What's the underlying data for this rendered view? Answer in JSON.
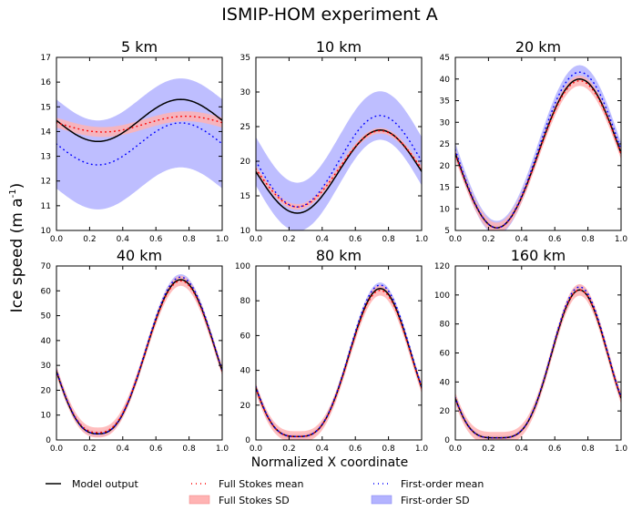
{
  "chart_data": {
    "type": "line",
    "title": "ISMIP-HOM experiment A",
    "xlabel": "Normalized X coordinate",
    "ylabel": "Ice speed (m a",
    "ylabel_sup": "-1",
    "ylabel_close": ")",
    "x_ticks": [
      "0.0",
      "0.2",
      "0.4",
      "0.6",
      "0.8",
      "1.0"
    ],
    "legend": {
      "model": "Model output",
      "fs_mean": "Full Stokes mean",
      "fs_sd": "Full Stokes SD",
      "fo_mean": "First-order mean",
      "fo_sd": "First-order SD"
    },
    "colors": {
      "model": "#000000",
      "fs_mean": "#ff0000",
      "fs_sd": "#ffb3b3",
      "fo_mean": "#0000ff",
      "fo_sd": "#b3b3ff"
    },
    "panels": [
      {
        "title": "5 km",
        "ylim": [
          10,
          17
        ],
        "yticks": [
          "10",
          "11",
          "12",
          "13",
          "14",
          "15",
          "16",
          "17"
        ],
        "model": {
          "mean": 14.45,
          "amp": 0.85,
          "phase": 0
        },
        "fs_mean": {
          "mean": 14.3,
          "amp": 0.32,
          "phase": -0.03
        },
        "fs_sd": 0.2,
        "fo_mean": {
          "mean": 13.5,
          "amp": 0.85,
          "phase": 0
        },
        "fo_sd": 1.8
      },
      {
        "title": "10 km",
        "ylim": [
          10,
          35
        ],
        "yticks": [
          "10",
          "15",
          "20",
          "25",
          "30",
          "35"
        ],
        "model": {
          "mean": 18.5,
          "amp": 6.0,
          "phase": 0
        },
        "fs_mean": {
          "mean": 18.9,
          "amp": 5.5,
          "phase": 0
        },
        "fs_sd": 0.4,
        "fo_mean": {
          "mean": 20.0,
          "amp": 6.6,
          "phase": 0
        },
        "fo_sd": 3.5
      },
      {
        "title": "20 km",
        "ylim": [
          5,
          45
        ],
        "yticks": [
          "5",
          "10",
          "15",
          "20",
          "25",
          "30",
          "35",
          "40",
          "45"
        ],
        "model": {
          "mean": 22.8,
          "amp": 17.2,
          "phase": 0
        },
        "fs_mean": {
          "mean": 22.6,
          "amp": 17.0,
          "phase": 0
        },
        "fs_sd": 1.2,
        "fo_mean": {
          "mean": 23.6,
          "amp": 18.0,
          "phase": 0
        },
        "fo_sd": 1.6
      },
      {
        "title": "40 km",
        "ylim": [
          0,
          70
        ],
        "yticks": [
          "0",
          "10",
          "20",
          "30",
          "40",
          "50",
          "60",
          "70"
        ],
        "model": {
          "mean": 33.5,
          "amp": 31.0,
          "phase": 0
        },
        "fs_mean": {
          "mean": 33.5,
          "amp": 30.5,
          "phase": 0
        },
        "fs_sd": 2.0,
        "fo_mean": {
          "mean": 34.0,
          "amp": 31.5,
          "phase": 0
        },
        "fo_sd": 1.2
      },
      {
        "title": "80 km",
        "ylim": [
          0,
          100
        ],
        "yticks": [
          "0",
          "20",
          "40",
          "60",
          "80",
          "100"
        ],
        "model": {
          "mean": 44.5,
          "amp": 42.5,
          "phase": 0
        },
        "fs_mean": {
          "mean": 44.0,
          "amp": 42.0,
          "phase": 0
        },
        "fs_sd": 3.0,
        "fo_mean": {
          "mean": 45.5,
          "amp": 43.5,
          "phase": 0
        },
        "fo_sd": 1.5
      },
      {
        "title": "160 km",
        "ylim": [
          0,
          120
        ],
        "yticks": [
          "0",
          "20",
          "40",
          "60",
          "80",
          "100",
          "120"
        ],
        "model": {
          "mean": 52.5,
          "amp": 51.0,
          "phase": 0
        },
        "fs_mean": {
          "mean": 52.5,
          "amp": 51.0,
          "phase": 0
        },
        "fs_sd": 4.0,
        "fo_mean": {
          "mean": 53.5,
          "amp": 52.0,
          "phase": 0
        },
        "fo_sd": 1.5
      }
    ]
  }
}
